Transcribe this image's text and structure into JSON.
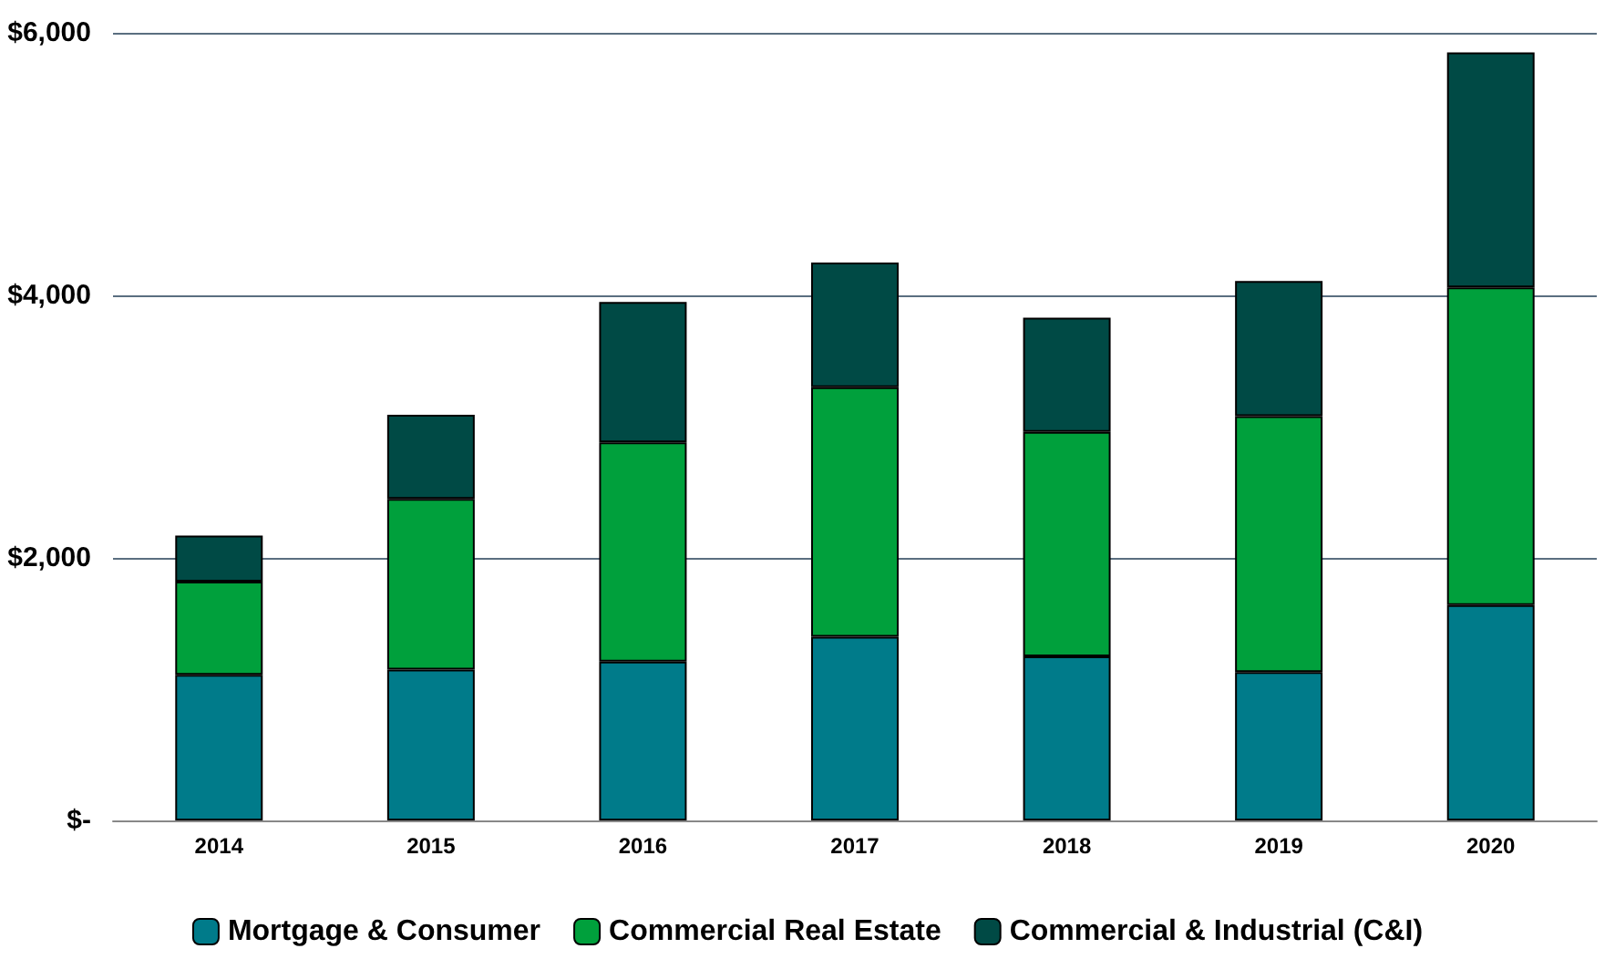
{
  "chart_data": {
    "type": "bar",
    "stacked": true,
    "categories": [
      "2014",
      "2015",
      "2016",
      "2017",
      "2018",
      "2019",
      "2020"
    ],
    "series": [
      {
        "name": "Mortgage & Consumer",
        "color": "#007b8a",
        "values": [
          1110,
          1150,
          1210,
          1400,
          1250,
          1130,
          1640
        ]
      },
      {
        "name": "Commercial Real Estate",
        "color": "#00a03c",
        "values": [
          710,
          1300,
          1670,
          1900,
          1710,
          1950,
          2420
        ]
      },
      {
        "name": "Commercial & Industrial (C&I)",
        "color": "#004a45",
        "values": [
          350,
          640,
          1070,
          950,
          870,
          1030,
          1790
        ]
      }
    ],
    "ylim": [
      0,
      6000
    ],
    "yticks": [
      {
        "value": 0,
        "label": "$-"
      },
      {
        "value": 2000,
        "label": "$2,000"
      },
      {
        "value": 4000,
        "label": "$4,000"
      },
      {
        "value": 6000,
        "label": "$6,000"
      }
    ],
    "grid": "y",
    "legend": "bottom"
  }
}
